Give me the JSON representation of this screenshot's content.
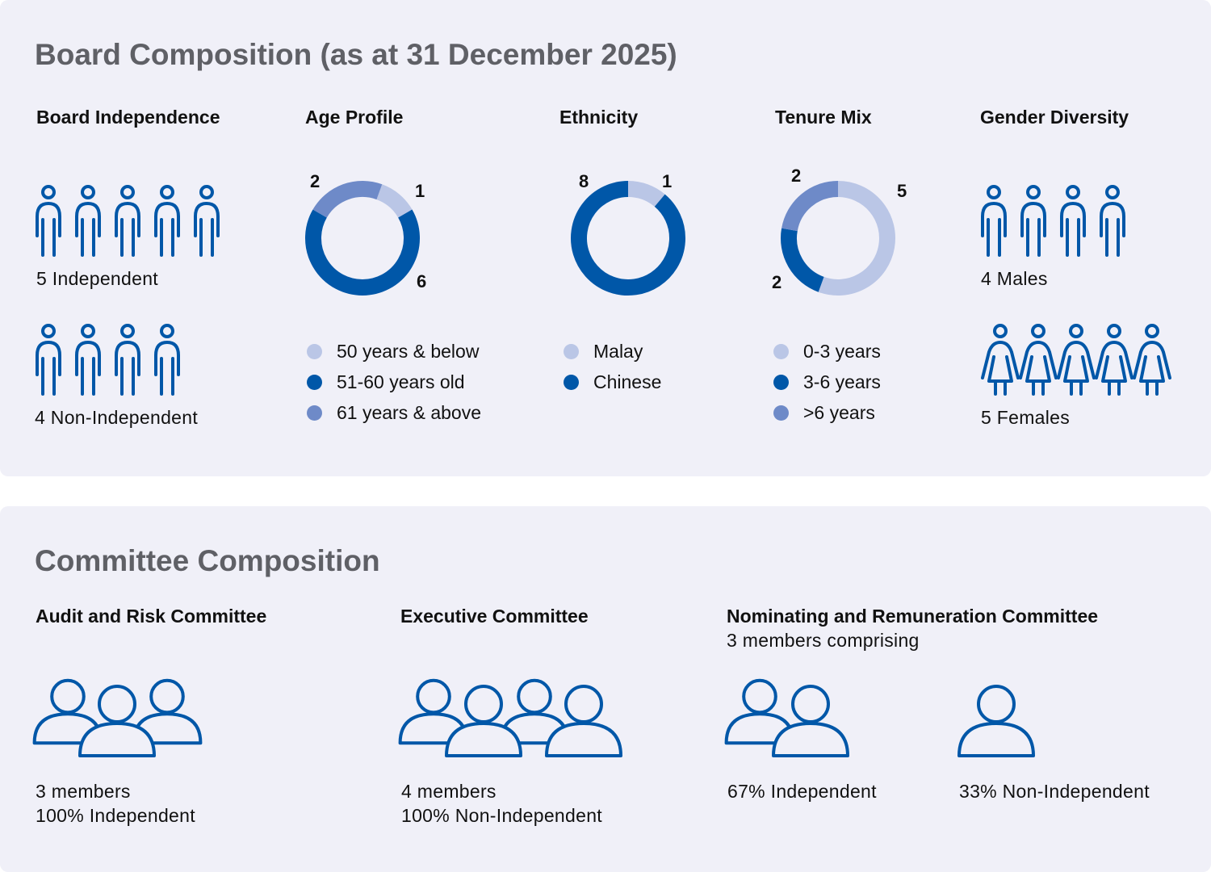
{
  "colors": {
    "dark": "#0057a8",
    "medium": "#6e8ac8",
    "light": "#bac6e6",
    "background": "#f0f0f8"
  },
  "board": {
    "title": "Board Composition (as at 31 December 2025)",
    "independence": {
      "heading": "Board Independence",
      "independent_label": "5 Independent",
      "independent_count": 5,
      "non_independent_label": "4 Non-Independent",
      "non_independent_count": 4
    },
    "gender": {
      "heading": "Gender Diversity",
      "males_label": "4 Males",
      "males_count": 4,
      "females_label": "5 Females",
      "females_count": 5
    }
  },
  "chart_data": [
    {
      "type": "pie",
      "title": "Age Profile",
      "categories": [
        "50 years & below",
        "51-60 years old",
        "61 years & above"
      ],
      "values": [
        1,
        6,
        2
      ],
      "colors": [
        "#bac6e6",
        "#0057a8",
        "#6e8ac8"
      ],
      "labels": [
        "1",
        "6",
        "2"
      ]
    },
    {
      "type": "pie",
      "title": "Ethnicity",
      "categories": [
        "Malay",
        "Chinese"
      ],
      "values": [
        1,
        8
      ],
      "colors": [
        "#bac6e6",
        "#0057a8"
      ],
      "labels": [
        "1",
        "8"
      ]
    },
    {
      "type": "pie",
      "title": "Tenure Mix",
      "categories": [
        "0-3 years",
        "3-6 years",
        ">6 years"
      ],
      "values": [
        5,
        2,
        2
      ],
      "colors": [
        "#bac6e6",
        "#0057a8",
        "#6e8ac8"
      ],
      "labels": [
        "5",
        "2",
        "2"
      ]
    }
  ],
  "committee": {
    "title": "Committee Composition",
    "audit": {
      "heading": "Audit and Risk Committee",
      "line1": "3 members",
      "line2": "100% Independent"
    },
    "executive": {
      "heading": "Executive Committee",
      "line1": "4 members",
      "line2": "100% Non-Independent"
    },
    "nominating": {
      "heading": "Nominating and Remuneration Committee",
      "subheading": "3 members comprising",
      "independent": "67% Independent",
      "non_independent": "33% Non-Independent"
    }
  }
}
